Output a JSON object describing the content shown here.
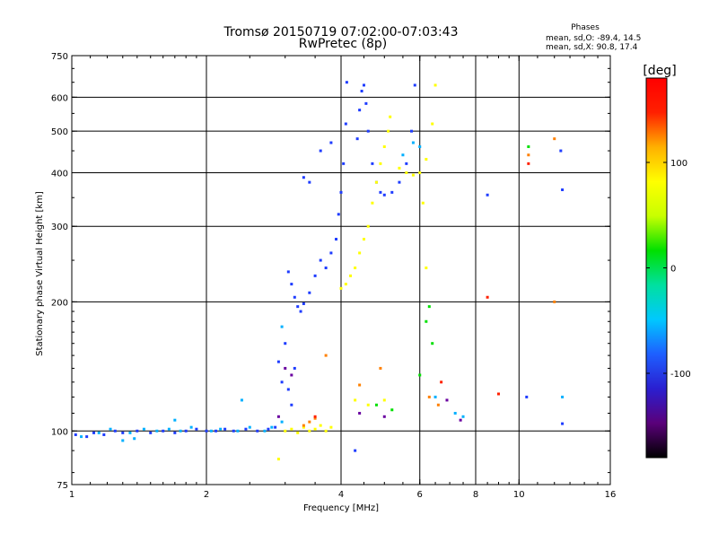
{
  "chart_data": {
    "type": "scatter",
    "title": "Tromsø 20150719 07:02:00-07:03:43",
    "subtitle": "RwPretec (8p)",
    "xlabel": "Frequency [MHz]",
    "ylabel": "Stationary phase Virtual Height [km]",
    "x_scale": "log",
    "y_scale": "log",
    "xlim": [
      1,
      16
    ],
    "ylim": [
      75,
      750
    ],
    "x_ticks": [
      1,
      2,
      4,
      6,
      8,
      10,
      16
    ],
    "y_ticks": [
      75,
      100,
      200,
      300,
      400,
      500,
      600,
      750
    ],
    "x_gridlines": [
      2,
      4,
      6,
      8,
      10
    ],
    "y_gridlines": [
      100,
      200,
      300,
      400,
      500,
      600
    ],
    "grid": true,
    "phase_box": {
      "heading": "Phases",
      "line1": "mean, sd,O: -89.4, 14.5",
      "line2": "mean, sd,X:  90.8, 17.4"
    },
    "colorbar": {
      "label": "[deg]",
      "range": [
        -180,
        180
      ],
      "ticks": [
        100,
        0,
        -100
      ],
      "placement": "right",
      "stops": [
        "#000000",
        "#5a007a",
        "#2a1fd0",
        "#1e5fff",
        "#00c8ff",
        "#00e0a0",
        "#00e000",
        "#c8ff00",
        "#ffff00",
        "#ffb000",
        "#ff2000",
        "#ff0000"
      ]
    },
    "series": [
      {
        "color": "#1e3cff",
        "points": [
          [
            1.02,
            98
          ],
          [
            1.08,
            97
          ],
          [
            1.12,
            99
          ],
          [
            1.18,
            98
          ],
          [
            1.25,
            100
          ],
          [
            1.3,
            99
          ],
          [
            1.4,
            100
          ],
          [
            1.5,
            99
          ],
          [
            1.6,
            100
          ],
          [
            1.7,
            99
          ],
          [
            1.8,
            100
          ],
          [
            1.9,
            101
          ],
          [
            2.0,
            100
          ],
          [
            2.1,
            100
          ],
          [
            2.2,
            101
          ],
          [
            2.3,
            100
          ],
          [
            2.45,
            101
          ],
          [
            2.6,
            100
          ],
          [
            2.75,
            101
          ],
          [
            2.85,
            102
          ],
          [
            3.05,
            235
          ],
          [
            3.1,
            220
          ],
          [
            3.15,
            205
          ],
          [
            3.2,
            195
          ],
          [
            3.25,
            190
          ],
          [
            3.3,
            198
          ],
          [
            3.4,
            210
          ],
          [
            3.5,
            230
          ],
          [
            3.6,
            250
          ],
          [
            3.7,
            240
          ],
          [
            3.8,
            260
          ],
          [
            3.9,
            280
          ],
          [
            3.95,
            320
          ],
          [
            4.0,
            360
          ],
          [
            4.05,
            420
          ],
          [
            4.1,
            520
          ],
          [
            4.12,
            650
          ],
          [
            4.35,
            480
          ],
          [
            4.4,
            560
          ],
          [
            4.45,
            620
          ],
          [
            4.5,
            640
          ],
          [
            4.55,
            580
          ],
          [
            4.6,
            500
          ],
          [
            4.7,
            420
          ],
          [
            4.8,
            380
          ],
          [
            4.9,
            360
          ],
          [
            5.0,
            355
          ],
          [
            5.2,
            360
          ],
          [
            5.4,
            380
          ],
          [
            5.6,
            420
          ],
          [
            5.75,
            500
          ],
          [
            5.85,
            640
          ],
          [
            3.6,
            450
          ],
          [
            3.8,
            470
          ],
          [
            2.9,
            145
          ],
          [
            2.95,
            130
          ],
          [
            3.0,
            160
          ],
          [
            3.05,
            125
          ],
          [
            3.1,
            115
          ],
          [
            3.15,
            140
          ],
          [
            8.5,
            355
          ],
          [
            12.5,
            365
          ],
          [
            4.3,
            90
          ],
          [
            12.4,
            450
          ],
          [
            10.4,
            120
          ],
          [
            12.5,
            104
          ],
          [
            3.3,
            390
          ],
          [
            3.4,
            380
          ]
        ]
      },
      {
        "color": "#00b0ff",
        "points": [
          [
            1.05,
            97
          ],
          [
            1.15,
            99
          ],
          [
            1.22,
            101
          ],
          [
            1.35,
            99
          ],
          [
            1.45,
            101
          ],
          [
            1.55,
            100
          ],
          [
            1.65,
            101
          ],
          [
            1.75,
            100
          ],
          [
            1.85,
            102
          ],
          [
            2.05,
            100
          ],
          [
            2.15,
            101
          ],
          [
            2.35,
            100
          ],
          [
            2.5,
            102
          ],
          [
            2.7,
            100
          ],
          [
            2.4,
            118
          ],
          [
            2.8,
            102
          ],
          [
            2.95,
            105
          ],
          [
            5.5,
            440
          ],
          [
            5.8,
            470
          ],
          [
            6.0,
            460
          ],
          [
            2.95,
            175
          ],
          [
            1.7,
            106
          ],
          [
            6.5,
            120
          ],
          [
            7.2,
            110
          ],
          [
            7.5,
            108
          ],
          [
            12.5,
            120
          ],
          [
            1.3,
            95
          ],
          [
            1.38,
            96
          ]
        ]
      },
      {
        "color": "#ffff00",
        "points": [
          [
            3.0,
            100
          ],
          [
            3.1,
            101
          ],
          [
            3.2,
            99
          ],
          [
            3.3,
            102
          ],
          [
            3.4,
            100
          ],
          [
            3.5,
            101
          ],
          [
            3.6,
            103
          ],
          [
            3.7,
            100
          ],
          [
            3.8,
            102
          ],
          [
            4.0,
            215
          ],
          [
            4.1,
            220
          ],
          [
            4.2,
            230
          ],
          [
            4.3,
            240
          ],
          [
            4.4,
            260
          ],
          [
            4.5,
            280
          ],
          [
            4.6,
            300
          ],
          [
            4.7,
            340
          ],
          [
            4.8,
            380
          ],
          [
            4.9,
            420
          ],
          [
            5.0,
            460
          ],
          [
            5.1,
            500
          ],
          [
            5.15,
            540
          ],
          [
            5.4,
            410
          ],
          [
            5.6,
            400
          ],
          [
            5.8,
            395
          ],
          [
            6.0,
            400
          ],
          [
            6.2,
            430
          ],
          [
            6.4,
            520
          ],
          [
            6.5,
            640
          ],
          [
            2.9,
            86
          ],
          [
            6.1,
            340
          ],
          [
            6.2,
            240
          ],
          [
            4.3,
            118
          ],
          [
            4.6,
            115
          ],
          [
            5.0,
            118
          ]
        ]
      },
      {
        "color": "#ff8000",
        "points": [
          [
            3.4,
            105
          ],
          [
            3.5,
            107
          ],
          [
            3.3,
            103
          ],
          [
            6.3,
            120
          ],
          [
            6.6,
            115
          ],
          [
            4.9,
            140
          ],
          [
            12.0,
            480
          ],
          [
            10.5,
            440
          ],
          [
            4.4,
            128
          ],
          [
            3.7,
            150
          ],
          [
            12.0,
            200
          ]
        ]
      },
      {
        "color": "#ff2000",
        "points": [
          [
            3.5,
            108
          ],
          [
            8.5,
            205
          ],
          [
            10.5,
            420
          ],
          [
            9.0,
            122
          ],
          [
            6.7,
            130
          ]
        ]
      },
      {
        "color": "#00e000",
        "points": [
          [
            6.3,
            195
          ],
          [
            6.2,
            180
          ],
          [
            10.5,
            460
          ],
          [
            4.8,
            115
          ],
          [
            5.2,
            112
          ],
          [
            6.4,
            160
          ],
          [
            6.0,
            135
          ]
        ]
      },
      {
        "color": "#6a00a0",
        "points": [
          [
            3.0,
            140
          ],
          [
            3.1,
            135
          ],
          [
            4.4,
            110
          ],
          [
            5.0,
            108
          ],
          [
            6.9,
            118
          ],
          [
            7.4,
            106
          ],
          [
            2.9,
            108
          ]
        ]
      }
    ]
  }
}
